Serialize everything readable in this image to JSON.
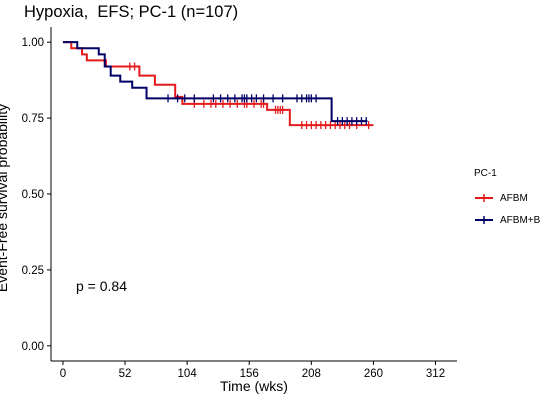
{
  "chart_data": {
    "type": "line",
    "title": "Hypoxia,  EFS; PC-1 (n=107)",
    "xlabel": "Time (wks)",
    "ylabel": "Event-Free survival probability",
    "xlim": [
      -10,
      330
    ],
    "ylim": [
      -0.05,
      1.05
    ],
    "x_ticks": [
      0,
      52,
      104,
      156,
      208,
      260,
      312
    ],
    "y_ticks": [
      0.0,
      0.25,
      0.5,
      0.75,
      1.0
    ],
    "y_tick_labels": [
      "0.00",
      "0.25",
      "0.50",
      "0.75",
      "1.00"
    ],
    "grid": false,
    "legend": {
      "title": "PC-1",
      "placement": "right",
      "entries": [
        "AFBM",
        "AFBM+B"
      ]
    },
    "annotation": "p = 0.84",
    "series": [
      {
        "name": "AFBM",
        "color": "#e41a1c",
        "steps": [
          [
            0,
            1.0
          ],
          [
            7,
            0.98
          ],
          [
            16,
            0.96
          ],
          [
            20,
            0.94
          ],
          [
            36,
            0.92
          ],
          [
            64,
            0.89
          ],
          [
            77,
            0.86
          ],
          [
            94,
            0.82
          ],
          [
            100,
            0.797
          ],
          [
            171,
            0.777
          ],
          [
            190,
            0.727
          ],
          [
            260,
            0.727
          ]
        ],
        "censor": [
          56,
          60,
          110,
          118,
          124,
          128,
          134,
          140,
          146,
          152,
          154,
          160,
          166,
          168,
          178,
          180,
          182,
          184,
          200,
          204,
          208,
          212,
          216,
          220,
          224,
          228,
          232,
          236,
          240,
          246,
          256
        ]
      },
      {
        "name": "AFBM+B",
        "color": "#000066",
        "steps": [
          [
            0,
            1.0
          ],
          [
            12,
            0.98
          ],
          [
            30,
            0.96
          ],
          [
            35,
            0.92
          ],
          [
            40,
            0.89
          ],
          [
            48,
            0.87
          ],
          [
            58,
            0.85
          ],
          [
            70,
            0.815
          ],
          [
            225,
            0.74
          ],
          [
            255,
            0.74
          ]
        ],
        "censor": [
          88,
          96,
          102,
          110,
          126,
          132,
          138,
          144,
          150,
          152,
          154,
          158,
          162,
          168,
          176,
          184,
          196,
          200,
          204,
          206,
          208,
          212,
          230,
          234,
          238,
          242,
          246,
          250,
          254
        ]
      }
    ]
  }
}
